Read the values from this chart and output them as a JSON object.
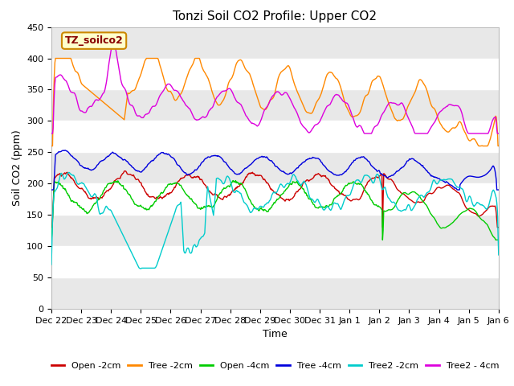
{
  "title": "Tonzi Soil CO2 Profile: Upper CO2",
  "ylabel": "Soil CO2 (ppm)",
  "xlabel": "Time",
  "watermark": "TZ_soilco2",
  "ylim": [
    0,
    450
  ],
  "yticks": [
    0,
    50,
    100,
    150,
    200,
    250,
    300,
    350,
    400,
    450
  ],
  "x_tick_labels": [
    "Dec 22",
    "Dec 23",
    "Dec 24",
    "Dec 25",
    "Dec 26",
    "Dec 27",
    "Dec 28",
    "Dec 29",
    "Dec 30",
    "Dec 31",
    "Jan 1",
    "Jan 2",
    "Jan 3",
    "Jan 4",
    "Jan 5",
    "Jan 6"
  ],
  "series_colors": {
    "Open -2cm": "#cc0000",
    "Tree -2cm": "#ff8800",
    "Open -4cm": "#00cc00",
    "Tree -4cm": "#0000dd",
    "Tree2 -2cm": "#00cccc",
    "Tree2 - 4cm": "#dd00dd"
  },
  "fig_bg": "#ffffff",
  "plot_bg": "#ffffff",
  "band_color_light": "#e8e8e8",
  "band_color_dark": "#f8f8f8",
  "linewidth": 1.0,
  "title_fontsize": 11,
  "axis_fontsize": 9,
  "tick_fontsize": 8,
  "legend_fontsize": 8
}
